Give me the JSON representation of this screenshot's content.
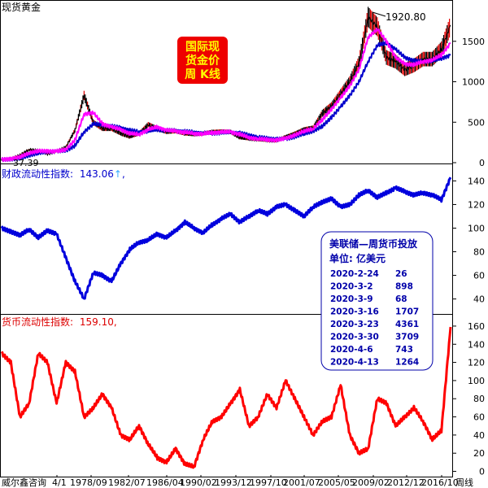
{
  "chart_data": [
    {
      "type": "line",
      "title": "现货黄金",
      "xlabel": "",
      "ylabel": "",
      "ylim": [
        0,
        1950
      ],
      "yticks": [
        0,
        500,
        1000,
        1500
      ],
      "grid": false,
      "annotations": {
        "peak_label": "1920.80",
        "low_label": "37.39",
        "badge_lines": [
          "国际现",
          "货金价",
          "周 K线"
        ]
      },
      "colors": {
        "price": "#000000",
        "up": "#e00000",
        "ma_fast": "#ff00ff",
        "ma_slow": "#0000cc"
      },
      "x": [
        1971,
        1972,
        1973,
        1974,
        1975,
        1976,
        1977,
        1978,
        1979,
        1980,
        1981,
        1982,
        1983,
        1984,
        1985,
        1986,
        1987,
        1988,
        1989,
        1990,
        1991,
        1992,
        1993,
        1994,
        1995,
        1996,
        1997,
        1998,
        1999,
        2000,
        2001,
        2002,
        2003,
        2004,
        2005,
        2006,
        2007,
        2008,
        2009,
        2010,
        2011,
        2012,
        2013,
        2014,
        2015,
        2016,
        2017,
        2018,
        2019,
        2020
      ],
      "series": [
        {
          "name": "price",
          "values": [
            37,
            48,
            90,
            160,
            150,
            110,
            140,
            190,
            400,
            830,
            500,
            420,
            420,
            360,
            320,
            360,
            470,
            420,
            380,
            390,
            360,
            350,
            360,
            380,
            385,
            380,
            310,
            295,
            285,
            275,
            270,
            320,
            360,
            410,
            430,
            610,
            700,
            850,
            1000,
            1230,
            1800,
            1680,
            1300,
            1250,
            1150,
            1200,
            1280,
            1280,
            1400,
            1700
          ]
        },
        {
          "name": "ma_fast",
          "values": [
            38,
            45,
            70,
            120,
            145,
            140,
            140,
            160,
            280,
            600,
            620,
            480,
            440,
            410,
            360,
            350,
            410,
            440,
            400,
            390,
            375,
            360,
            358,
            370,
            378,
            380,
            350,
            310,
            295,
            285,
            278,
            300,
            340,
            390,
            420,
            530,
            660,
            800,
            950,
            1150,
            1550,
            1650,
            1500,
            1300,
            1220,
            1210,
            1250,
            1270,
            1330,
            1480
          ]
        },
        {
          "name": "ma_slow",
          "values": [
            38,
            42,
            55,
            90,
            120,
            135,
            140,
            150,
            210,
            380,
            480,
            470,
            450,
            430,
            400,
            380,
            390,
            410,
            400,
            395,
            385,
            375,
            365,
            365,
            370,
            375,
            365,
            340,
            315,
            300,
            290,
            295,
            320,
            360,
            390,
            450,
            560,
            690,
            830,
            1000,
            1250,
            1450,
            1480,
            1400,
            1300,
            1260,
            1250,
            1260,
            1290,
            1330
          ]
        }
      ]
    },
    {
      "type": "line",
      "title": "财政流动性指数:",
      "current_label": "143.06",
      "arrow_symbol": "↑",
      "trailing_comma": ",",
      "ylim": [
        28,
        152
      ],
      "yticks": [
        40,
        60,
        80,
        100,
        120,
        140
      ],
      "colors": {
        "line": "#0000dd"
      },
      "legend_box": {
        "title": "美联储—周货币投放",
        "unit": "单位: 亿美元",
        "rows": [
          {
            "date": "2020-2-24",
            "value": "26"
          },
          {
            "date": "2020-3-2",
            "value": "898"
          },
          {
            "date": "2020-3-9",
            "value": "68"
          },
          {
            "date": "2020-3-16",
            "value": "1707"
          },
          {
            "date": "2020-3-23",
            "value": "4361"
          },
          {
            "date": "2020-3-30",
            "value": "3709"
          },
          {
            "date": "2020-4-6",
            "value": "743"
          },
          {
            "date": "2020-4-13",
            "value": "1264"
          }
        ]
      },
      "x": [
        1971,
        1972,
        1973,
        1974,
        1975,
        1976,
        1977,
        1978,
        1979,
        1980,
        1981,
        1982,
        1983,
        1984,
        1985,
        1986,
        1987,
        1988,
        1989,
        1990,
        1991,
        1992,
        1993,
        1994,
        1995,
        1996,
        1997,
        1998,
        1999,
        2000,
        2001,
        2002,
        2003,
        2004,
        2005,
        2006,
        2007,
        2008,
        2009,
        2010,
        2011,
        2012,
        2013,
        2014,
        2015,
        2016,
        2017,
        2018,
        2019,
        2020
      ],
      "series": [
        {
          "name": "财政流动性指数",
          "values": [
            100,
            97,
            94,
            99,
            92,
            98,
            95,
            75,
            55,
            40,
            62,
            60,
            55,
            70,
            82,
            88,
            90,
            95,
            92,
            98,
            105,
            100,
            96,
            103,
            108,
            112,
            105,
            110,
            115,
            112,
            118,
            120,
            115,
            110,
            118,
            122,
            125,
            118,
            120,
            128,
            132,
            126,
            130,
            134,
            131,
            128,
            130,
            128,
            124,
            143
          ]
        }
      ]
    },
    {
      "type": "line",
      "title": "货币流动性指数:",
      "current_label": "159.10",
      "trailing_comma": ",",
      "ylim": [
        -4,
        168
      ],
      "yticks": [
        0,
        20,
        40,
        60,
        80,
        100,
        120,
        140,
        160
      ],
      "colors": {
        "line": "#ff0000"
      },
      "x_tick_labels": [
        "威尔鑫咨询",
        "4/1",
        "1978/09",
        "1982/07",
        "1986/04",
        "1990/02",
        "1993/12",
        "1997/10",
        "2001/07",
        "2005/05",
        "2009/02",
        "2012/12",
        "2016/10"
      ],
      "x_axis_suffix": "周线",
      "x": [
        1971,
        1972,
        1973,
        1974,
        1975,
        1976,
        1977,
        1978,
        1979,
        1980,
        1981,
        1982,
        1983,
        1984,
        1985,
        1986,
        1987,
        1988,
        1989,
        1990,
        1991,
        1992,
        1993,
        1994,
        1995,
        1996,
        1997,
        1998,
        1999,
        2000,
        2001,
        2002,
        2003,
        2004,
        2005,
        2006,
        2007,
        2008,
        2009,
        2010,
        2011,
        2012,
        2013,
        2014,
        2015,
        2016,
        2017,
        2018,
        2019,
        2020
      ],
      "series": [
        {
          "name": "货币流动性指数",
          "values": [
            130,
            120,
            60,
            75,
            130,
            120,
            75,
            120,
            110,
            60,
            70,
            85,
            70,
            40,
            35,
            50,
            30,
            15,
            10,
            25,
            8,
            5,
            35,
            55,
            60,
            75,
            90,
            50,
            60,
            85,
            70,
            100,
            80,
            60,
            40,
            55,
            60,
            95,
            40,
            20,
            25,
            80,
            75,
            50,
            60,
            70,
            55,
            35,
            45,
            159
          ]
        }
      ]
    }
  ]
}
